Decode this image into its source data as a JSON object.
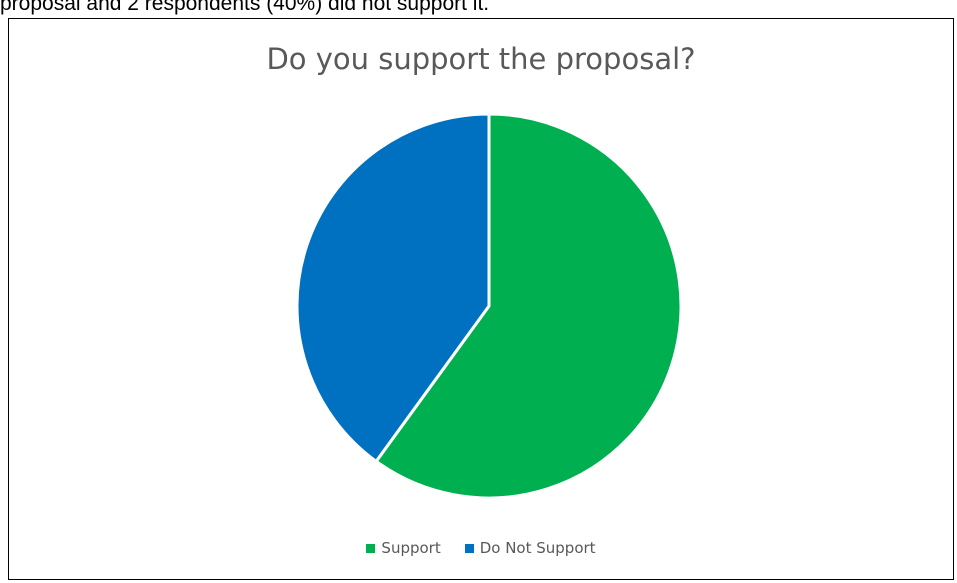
{
  "document": {
    "text_line": "proposal and 2 respondents (40%) did not support it."
  },
  "chart_data": {
    "type": "pie",
    "title": "Do you support the proposal?",
    "categories": [
      "Support",
      "Do Not Support"
    ],
    "values": [
      3,
      2
    ],
    "colors": [
      "#00b050",
      "#0070c0"
    ],
    "legend_position": "bottom"
  }
}
